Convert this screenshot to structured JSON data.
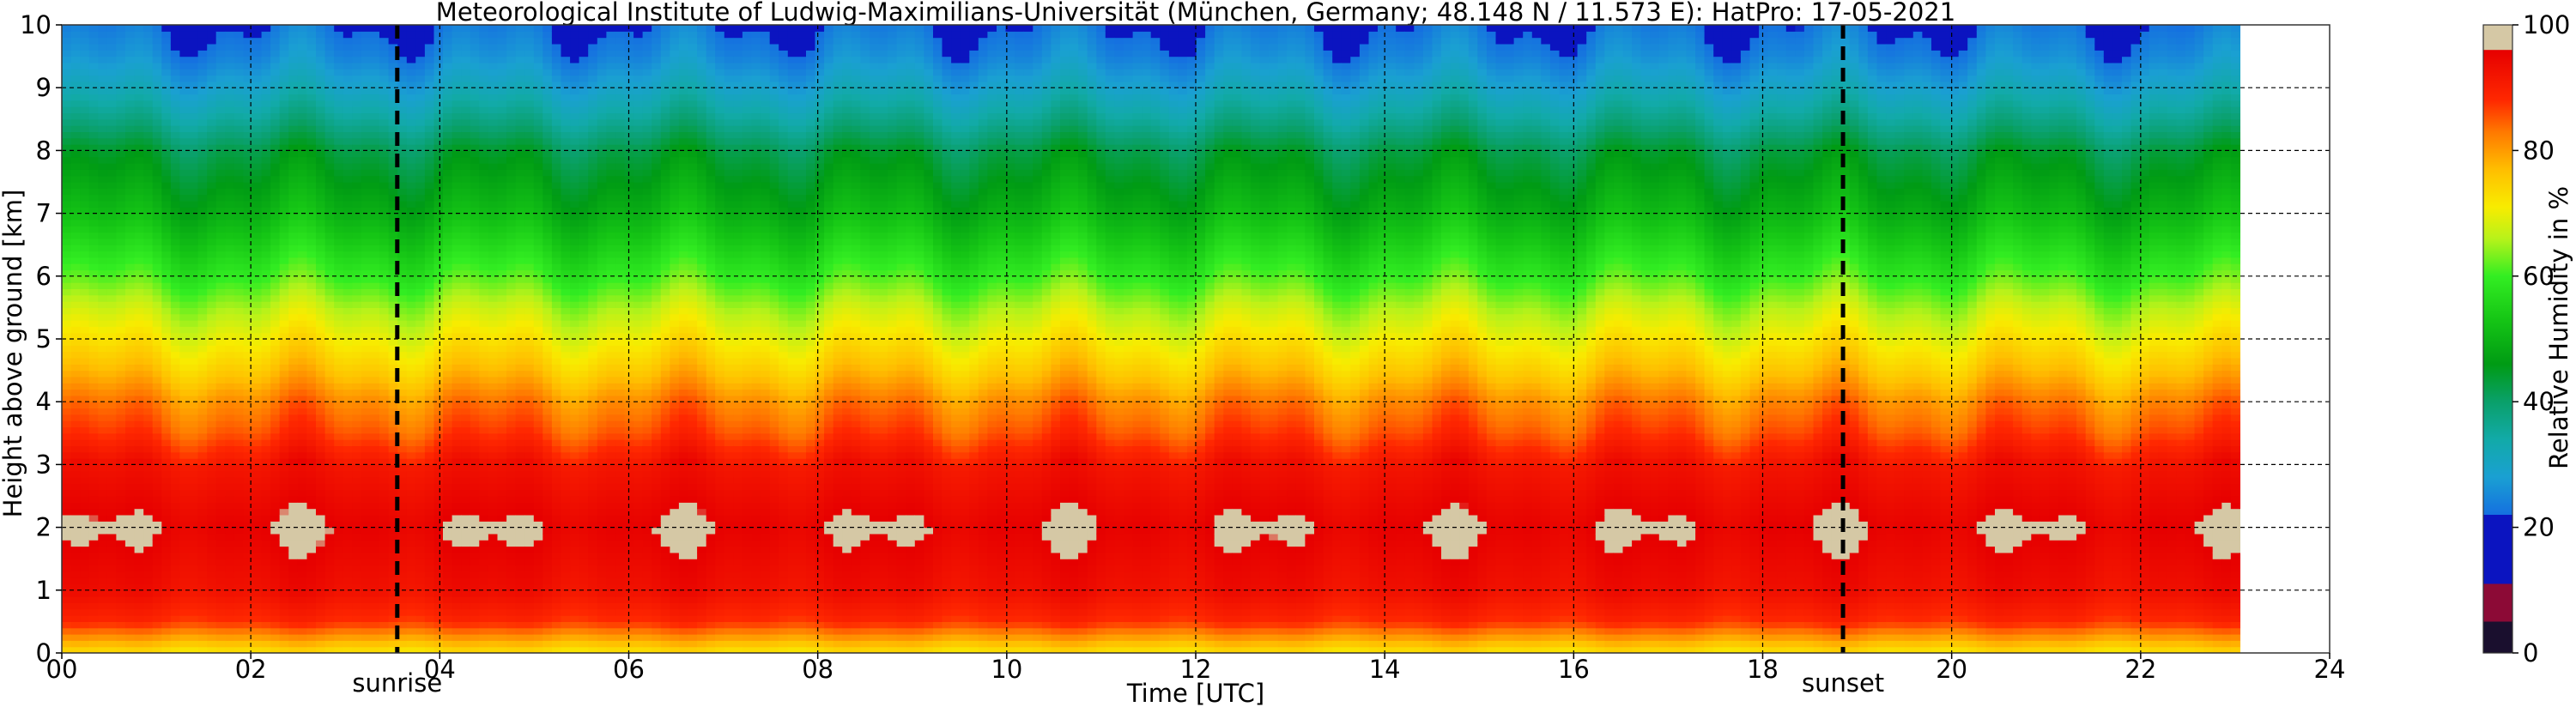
{
  "chart_data": {
    "type": "heatmap",
    "title": "Meteorological Institute of Ludwig-Maximilians-Universität (München, Germany; 48.148 N / 11.573 E):    HatPro: 17-05-2021",
    "xlabel": "Time [UTC]",
    "ylabel": "Height above ground [km]",
    "colorbar_label": "Relative Humidity in %",
    "xlim": [
      0,
      24
    ],
    "ylim": [
      0,
      10
    ],
    "clim": [
      0,
      100
    ],
    "x_ticks": [
      0,
      2,
      4,
      6,
      8,
      10,
      12,
      14,
      16,
      18,
      20,
      22,
      24
    ],
    "x_tick_labels": [
      "00",
      "02",
      "04",
      "06",
      "08",
      "10",
      "12",
      "14",
      "16",
      "18",
      "20",
      "22",
      "24"
    ],
    "y_ticks": [
      0,
      1,
      2,
      3,
      4,
      5,
      6,
      7,
      8,
      9,
      10
    ],
    "y_tick_labels": [
      "0",
      "1",
      "2",
      "3",
      "4",
      "5",
      "6",
      "7",
      "8",
      "9",
      "10"
    ],
    "colorbar_ticks": [
      0,
      20,
      40,
      60,
      80,
      100
    ],
    "colorbar_tick_labels": [
      "0",
      "20",
      "40",
      "60",
      "80",
      "100"
    ],
    "grid": true,
    "data_coverage_hours": [
      0,
      23.05
    ],
    "annotations": [
      {
        "label": "sunrise",
        "x": 3.55
      },
      {
        "label": "sunset",
        "x": 18.85
      }
    ],
    "approx_profile": {
      "heights_km": [
        0,
        0.5,
        1,
        2,
        3,
        3.5,
        4,
        4.5,
        5,
        5.5,
        6,
        7,
        8,
        8.5,
        9,
        9.5,
        10
      ],
      "rh_percent": [
        72,
        88,
        93,
        96,
        92,
        86,
        82,
        76,
        71,
        66,
        60,
        50,
        43,
        36,
        30,
        25,
        22
      ]
    },
    "colormap_stops": [
      {
        "v": 0,
        "color": "#1a0f2e"
      },
      {
        "v": 5,
        "color": "#1a0f2e"
      },
      {
        "v": 5.01,
        "color": "#8c0a36"
      },
      {
        "v": 11,
        "color": "#8c0a36"
      },
      {
        "v": 11.01,
        "color": "#0b14c0"
      },
      {
        "v": 22,
        "color": "#0b14c0"
      },
      {
        "v": 22.01,
        "color": "#1570e0"
      },
      {
        "v": 28,
        "color": "#1aa0d2"
      },
      {
        "v": 34,
        "color": "#12aaa8"
      },
      {
        "v": 40,
        "color": "#0aa06a"
      },
      {
        "v": 46,
        "color": "#009b14"
      },
      {
        "v": 53,
        "color": "#15c515"
      },
      {
        "v": 60,
        "color": "#33ee22"
      },
      {
        "v": 66,
        "color": "#b8f21a"
      },
      {
        "v": 71,
        "color": "#f8ec00"
      },
      {
        "v": 77,
        "color": "#ffbe00"
      },
      {
        "v": 83,
        "color": "#ff7800"
      },
      {
        "v": 88,
        "color": "#ff2800"
      },
      {
        "v": 96,
        "color": "#e60000"
      },
      {
        "v": 96.01,
        "color": "#d5c8a5"
      },
      {
        "v": 100,
        "color": "#d5c8a5"
      }
    ]
  }
}
